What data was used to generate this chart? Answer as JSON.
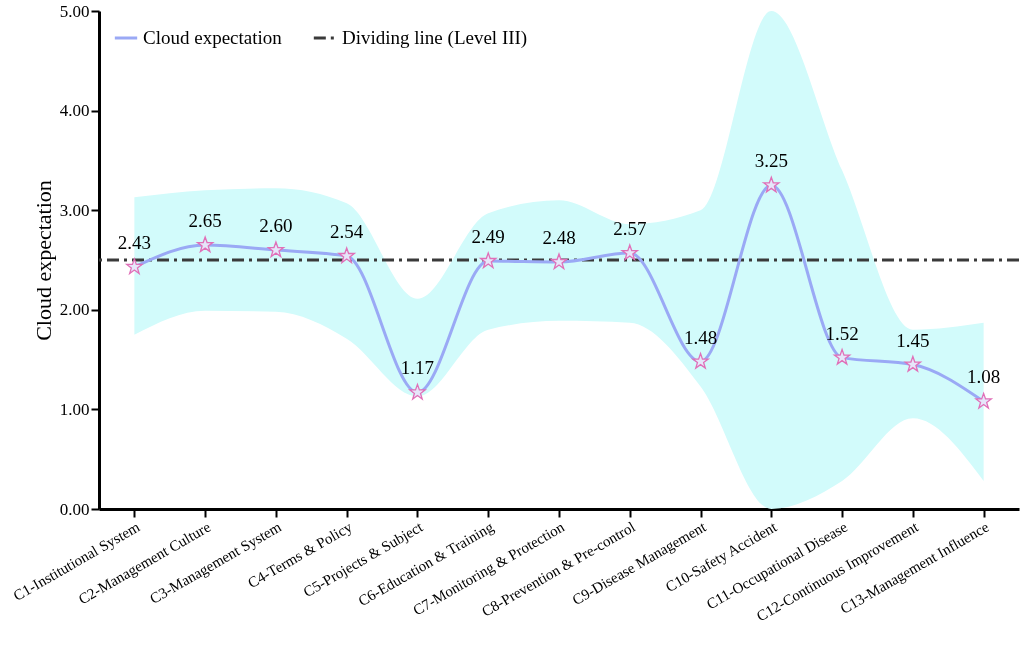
{
  "chart_data": {
    "type": "line",
    "ylabel": "Cloud expectation",
    "categories": [
      "C1-Institutional System",
      "C2-Management Culture",
      "C3-Management System",
      "C4-Terms & Policy",
      "C5-Projects & Subject",
      "C6-Education & Training",
      "C7-Monitoring & Protection",
      "C8-Prevention & Pre-control",
      "C9-Disease Management",
      "C10-Safety Accident",
      "C11-Occupational Disease",
      "C12-Continuous Improvement",
      "C13-Management Influence"
    ],
    "series": [
      {
        "name": "Cloud expectation",
        "color": "#9aa9f5",
        "values": [
          2.43,
          2.65,
          2.6,
          2.54,
          1.17,
          2.49,
          2.48,
          2.57,
          1.48,
          3.25,
          1.52,
          1.45,
          1.08
        ],
        "value_labels": [
          "2.43",
          "2.65",
          "2.60",
          "2.54",
          "1.17",
          "2.49",
          "2.48",
          "2.57",
          "1.48",
          "3.25",
          "1.52",
          "1.45",
          "1.08"
        ],
        "lower": [
          1.75,
          1.99,
          1.98,
          1.71,
          1.13,
          1.8,
          1.89,
          1.87,
          1.23,
          0,
          0.28,
          0.91,
          0.28
        ],
        "upper": [
          3.13,
          3.2,
          3.22,
          3.07,
          2.11,
          2.97,
          3.1,
          2.86,
          3.0,
          5.0,
          3.4,
          1.8,
          1.87
        ]
      }
    ],
    "ref_lines": [
      {
        "axis": "y",
        "value": 2.5,
        "label": "Dividing line (Level III)",
        "color": "#3a3a3a",
        "line_style": "dashed"
      }
    ],
    "ylim": [
      0,
      5
    ],
    "yticks": [
      {
        "value": 0,
        "label": "0.00"
      },
      {
        "value": 1,
        "label": "1.00"
      },
      {
        "value": 2,
        "label": "2.00"
      },
      {
        "value": 3,
        "label": "3.00"
      },
      {
        "value": 4,
        "label": "4.00"
      },
      {
        "value": 5,
        "label": "5.00"
      }
    ],
    "marker": "star",
    "line_style": "solid",
    "legend": "top left"
  }
}
